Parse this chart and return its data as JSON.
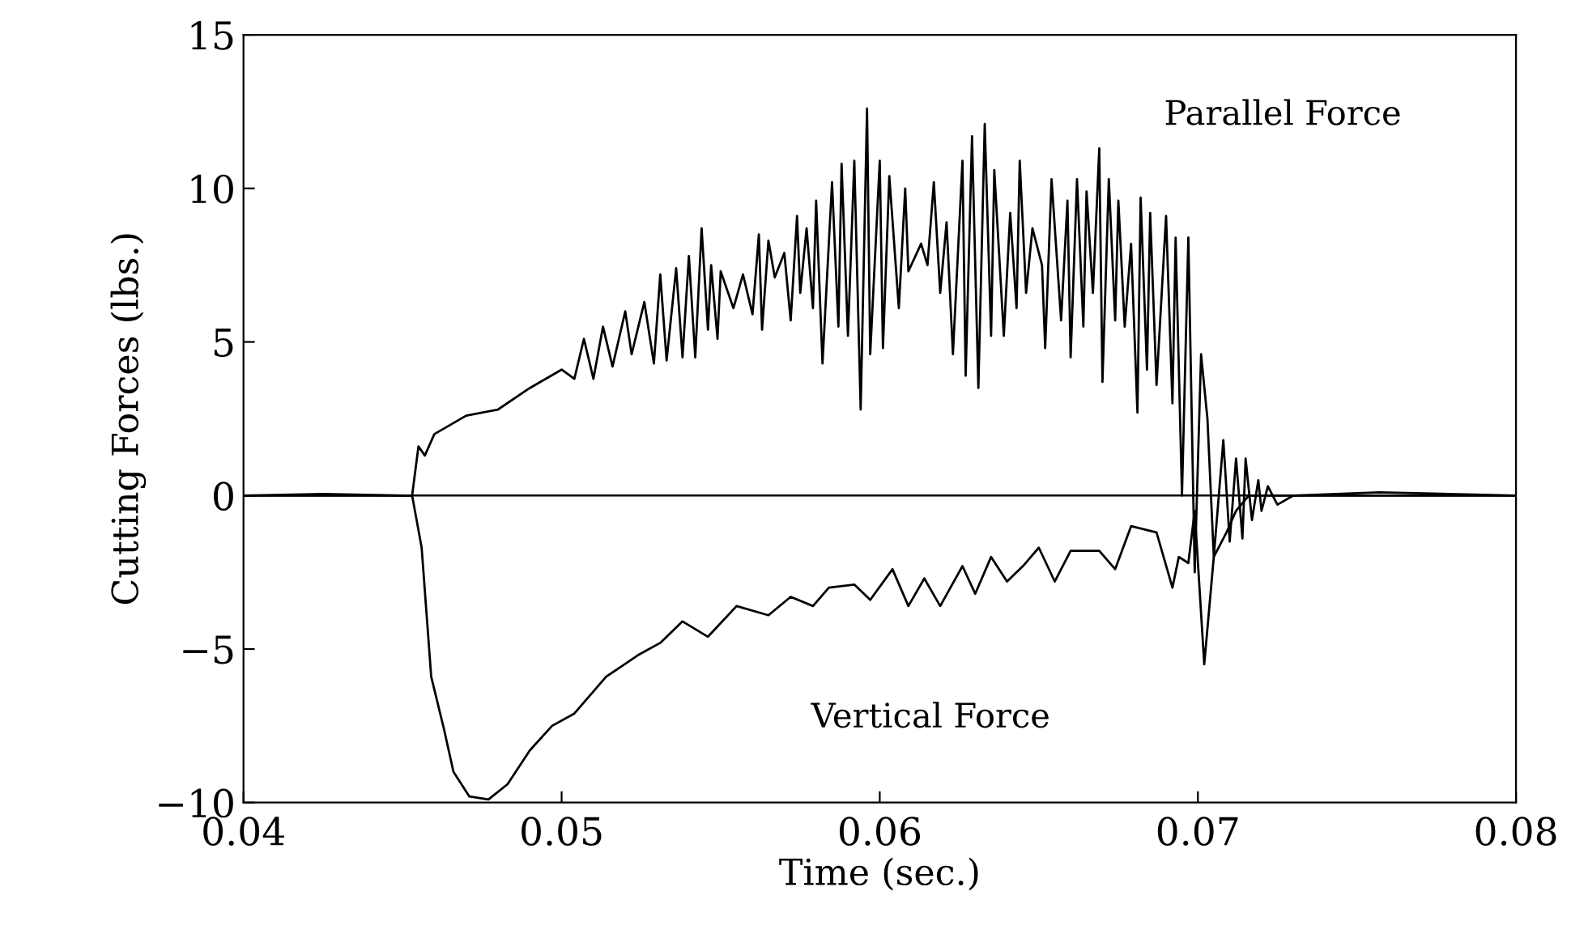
{
  "chart_data": {
    "type": "line",
    "xlabel": "Time (sec.)",
    "ylabel": "Cutting Forces (lbs.)",
    "xlim": [
      0.04,
      0.08
    ],
    "ylim": [
      -10,
      15
    ],
    "xticks": [
      0.04,
      0.05,
      0.06,
      0.07,
      0.08
    ],
    "yticks": [
      {
        "value": -10,
        "label": "−10"
      },
      {
        "value": -5,
        "label": "−5"
      },
      0,
      5,
      10,
      15
    ],
    "grid": false,
    "legend": false,
    "marker": "none",
    "line_style": "solid",
    "ref_lines": [
      {
        "axis": "y",
        "value": 0,
        "color": "#000000"
      }
    ],
    "series": [
      {
        "name": "Parallel Force",
        "color": "#000000",
        "x": [
          0.04,
          0.0425,
          0.0451,
          0.0453,
          0.0455,
          0.0457,
          0.046,
          0.047,
          0.048,
          0.049,
          0.05,
          0.0504,
          0.0507,
          0.051,
          0.0513,
          0.0516,
          0.052,
          0.0522,
          0.0526,
          0.0529,
          0.0531,
          0.0533,
          0.0536,
          0.0538,
          0.054,
          0.0542,
          0.0544,
          0.0546,
          0.0547,
          0.0549,
          0.055,
          0.0554,
          0.0557,
          0.056,
          0.0562,
          0.0563,
          0.0565,
          0.0567,
          0.057,
          0.0572,
          0.0574,
          0.0575,
          0.0577,
          0.0579,
          0.058,
          0.0582,
          0.0585,
          0.0587,
          0.0588,
          0.059,
          0.0592,
          0.0594,
          0.0596,
          0.0597,
          0.06,
          0.0601,
          0.0603,
          0.0606,
          0.0608,
          0.0609,
          0.0613,
          0.0615,
          0.0617,
          0.0619,
          0.0621,
          0.0623,
          0.0626,
          0.0627,
          0.0629,
          0.0631,
          0.0633,
          0.0635,
          0.0636,
          0.0639,
          0.0641,
          0.0643,
          0.0644,
          0.0646,
          0.0648,
          0.0651,
          0.0652,
          0.0654,
          0.0657,
          0.0659,
          0.066,
          0.0662,
          0.0664,
          0.0665,
          0.0667,
          0.0669,
          0.067,
          0.0672,
          0.0674,
          0.0675,
          0.0677,
          0.0679,
          0.0681,
          0.0682,
          0.0684,
          0.0685,
          0.0687,
          0.069,
          0.0692,
          0.0693,
          0.0695,
          0.0697,
          0.0699,
          0.0701,
          0.0703,
          0.0705,
          0.0708,
          0.071,
          0.0712,
          0.0714,
          0.0715,
          0.0717,
          0.0719,
          0.072,
          0.0722,
          0.0725,
          0.073,
          0.0757,
          0.08
        ],
        "values": [
          0,
          0.05,
          0,
          0,
          1.6,
          1.3,
          2.0,
          2.6,
          2.8,
          3.5,
          4.1,
          3.8,
          5.1,
          3.8,
          5.5,
          4.2,
          6.0,
          4.6,
          6.3,
          4.3,
          7.2,
          4.4,
          7.4,
          4.5,
          7.8,
          4.5,
          8.7,
          5.4,
          7.5,
          5.1,
          7.3,
          6.1,
          7.2,
          5.9,
          8.5,
          5.4,
          8.3,
          7.1,
          7.9,
          5.7,
          9.1,
          6.6,
          8.7,
          6.1,
          9.6,
          4.3,
          10.2,
          5.5,
          10.8,
          5.2,
          10.9,
          2.8,
          12.6,
          4.6,
          10.9,
          4.8,
          10.4,
          6.1,
          10.0,
          7.3,
          8.2,
          7.5,
          10.2,
          6.6,
          8.9,
          4.6,
          10.9,
          3.9,
          11.7,
          3.5,
          12.1,
          5.2,
          10.6,
          5.2,
          9.2,
          6.1,
          10.9,
          6.6,
          8.7,
          7.5,
          4.8,
          10.3,
          5.7,
          9.6,
          4.5,
          10.3,
          5.5,
          9.9,
          6.6,
          11.3,
          3.7,
          10.3,
          5.7,
          9.6,
          5.5,
          8.2,
          2.7,
          9.7,
          4.1,
          9.2,
          3.6,
          9.1,
          3.0,
          8.4,
          0,
          8.4,
          -2.5,
          4.6,
          2.5,
          -2.0,
          1.8,
          -1.5,
          1.2,
          -1.4,
          1.2,
          -0.8,
          0.5,
          -0.5,
          0.3,
          -0.3,
          0,
          0.1,
          0
        ]
      },
      {
        "name": "Vertical Force",
        "color": "#000000",
        "x": [
          0.04,
          0.0453,
          0.0456,
          0.0459,
          0.0463,
          0.0466,
          0.0471,
          0.0477,
          0.0483,
          0.049,
          0.0497,
          0.0504,
          0.0514,
          0.0524,
          0.0531,
          0.0538,
          0.0546,
          0.0555,
          0.0565,
          0.0572,
          0.0579,
          0.0584,
          0.0592,
          0.0597,
          0.0604,
          0.0609,
          0.0614,
          0.0619,
          0.0626,
          0.063,
          0.0635,
          0.064,
          0.0645,
          0.065,
          0.0655,
          0.066,
          0.0669,
          0.0674,
          0.0679,
          0.0687,
          0.0692,
          0.0694,
          0.0697,
          0.0699,
          0.0702,
          0.0705,
          0.0709,
          0.0712,
          0.0716,
          0.08
        ],
        "values": [
          0,
          0,
          -1.7,
          -5.9,
          -7.6,
          -9.0,
          -9.8,
          -9.9,
          -9.4,
          -8.3,
          -7.5,
          -7.1,
          -5.9,
          -5.2,
          -4.8,
          -4.1,
          -4.6,
          -3.6,
          -3.9,
          -3.3,
          -3.6,
          -3.0,
          -2.9,
          -3.4,
          -2.4,
          -3.6,
          -2.7,
          -3.6,
          -2.3,
          -3.2,
          -2.0,
          -2.8,
          -2.3,
          -1.7,
          -2.8,
          -1.8,
          -1.8,
          -2.4,
          -1.0,
          -1.2,
          -3.0,
          -2.0,
          -2.2,
          -0.5,
          -5.5,
          -2.0,
          -1.2,
          -0.5,
          0,
          0
        ]
      }
    ]
  }
}
